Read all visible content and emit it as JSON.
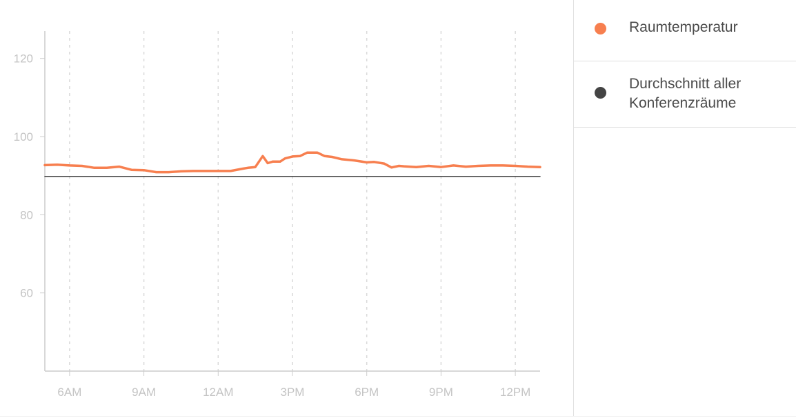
{
  "chart_data": {
    "type": "line",
    "title": "",
    "xlabel": "",
    "ylabel": "",
    "ylim": [
      40,
      127
    ],
    "yticks": [
      60,
      80,
      100,
      120
    ],
    "xticks": [
      "6AM",
      "9AM",
      "12AM",
      "3PM",
      "6PM",
      "9PM",
      "12PM"
    ],
    "xlim_hours": [
      5.0,
      25.0
    ],
    "grid": {
      "vertical_dashed": true,
      "horizontal": false
    },
    "series": [
      {
        "name": "Raumtemperatur",
        "color": "#f77f4f",
        "x_hours": [
          5.0,
          5.5,
          6.0,
          6.5,
          7.0,
          7.5,
          8.0,
          8.5,
          9.0,
          9.5,
          10.0,
          10.5,
          11.0,
          11.5,
          12.0,
          12.5,
          13.0,
          13.2,
          13.5,
          13.8,
          14.0,
          14.2,
          14.5,
          14.7,
          15.0,
          15.3,
          15.6,
          15.8,
          16.0,
          16.3,
          16.6,
          17.0,
          17.5,
          18.0,
          18.3,
          18.7,
          19.0,
          19.3,
          19.5,
          20.0,
          20.5,
          21.0,
          21.5,
          22.0,
          22.5,
          23.0,
          23.5,
          24.0,
          24.5,
          25.0
        ],
        "y": [
          92.7,
          92.8,
          92.6,
          92.5,
          92.0,
          92.0,
          92.3,
          91.5,
          91.4,
          90.9,
          90.9,
          91.1,
          91.2,
          91.2,
          91.2,
          91.2,
          91.8,
          92.0,
          92.2,
          95.0,
          93.2,
          93.6,
          93.6,
          94.4,
          94.9,
          95.0,
          95.9,
          95.9,
          95.9,
          95.0,
          94.8,
          94.2,
          93.9,
          93.4,
          93.5,
          93.1,
          92.1,
          92.5,
          92.4,
          92.2,
          92.5,
          92.2,
          92.6,
          92.3,
          92.5,
          92.6,
          92.6,
          92.5,
          92.3,
          92.2
        ]
      },
      {
        "name": "Durchschnitt aller Konferenzräume",
        "color": "#444444",
        "x_hours": [
          5.0,
          25.0
        ],
        "y": [
          89.8,
          89.8
        ]
      }
    ],
    "legend_placement": "right"
  },
  "legend": {
    "items": [
      {
        "label": "Raumtemperatur",
        "color": "#f77f4f"
      },
      {
        "label_line1": "Durchschnitt aller",
        "label_line2": "Konferenzräume",
        "color": "#444444"
      }
    ]
  }
}
